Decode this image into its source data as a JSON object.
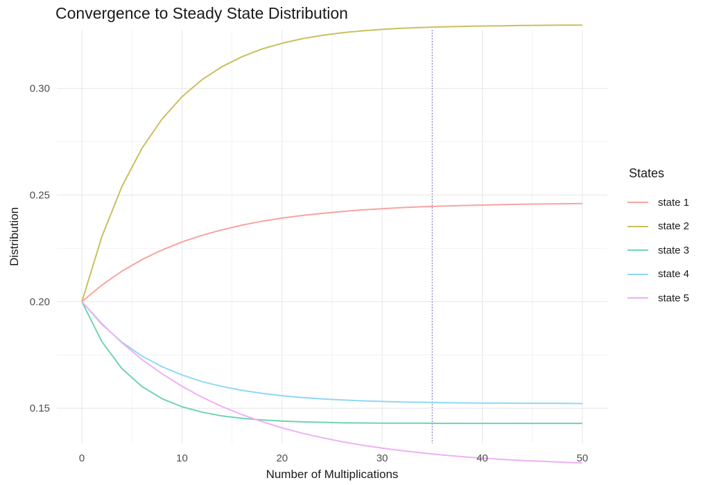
{
  "chart_data": {
    "type": "line",
    "title": "Convergence to Steady State Distribution",
    "xlabel": "Number of Multiplications",
    "ylabel": "Distribution",
    "xlim": [
      -2.5,
      52.5
    ],
    "ylim": [
      0.1335,
      0.3275
    ],
    "x_ticks": [
      0,
      10,
      20,
      30,
      40,
      50
    ],
    "x_tick_labels": [
      "0",
      "10",
      "20",
      "30",
      "40",
      "50"
    ],
    "y_ticks": [
      0.15,
      0.2,
      0.25,
      0.3
    ],
    "y_tick_labels": [
      "0.15",
      "0.20",
      "0.25",
      "0.30"
    ],
    "vline_x": 35,
    "legend_title": "States",
    "grid": true,
    "x": [
      0,
      2,
      4,
      6,
      8,
      10,
      12,
      14,
      16,
      18,
      20,
      22,
      24,
      26,
      28,
      30,
      32,
      34,
      36,
      38,
      40,
      42,
      44,
      46,
      48,
      50
    ],
    "series": [
      {
        "name": "state 1",
        "color": "#f8a39f",
        "values": [
          0.2,
          0.2078,
          0.2143,
          0.2197,
          0.2242,
          0.228,
          0.2311,
          0.2337,
          0.2359,
          0.2377,
          0.2392,
          0.2404,
          0.2414,
          0.2423,
          0.243,
          0.2436,
          0.2441,
          0.2445,
          0.2448,
          0.2451,
          0.2453,
          0.2455,
          0.2457,
          0.2458,
          0.2459,
          0.246
        ]
      },
      {
        "name": "state 2",
        "color": "#c9bf5e",
        "values": [
          0.2,
          0.2306,
          0.254,
          0.2719,
          0.2856,
          0.2961,
          0.3041,
          0.3102,
          0.3149,
          0.3185,
          0.3212,
          0.3233,
          0.3249,
          0.3261,
          0.327,
          0.3277,
          0.3282,
          0.3286,
          0.3289,
          0.3291,
          0.3293,
          0.3294,
          0.3295,
          0.3296,
          0.3297,
          0.3297
        ]
      },
      {
        "name": "state 3",
        "color": "#6fd3b0",
        "values": [
          0.2,
          0.1812,
          0.1686,
          0.1602,
          0.1545,
          0.1507,
          0.1482,
          0.1464,
          0.1453,
          0.1445,
          0.144,
          0.1436,
          0.1434,
          0.1432,
          0.1431,
          0.143,
          0.143,
          0.143,
          0.1429,
          0.1429,
          0.1429,
          0.1429,
          0.1429,
          0.1429,
          0.1429,
          0.1429
        ]
      },
      {
        "name": "state 4",
        "color": "#8ed8f5",
        "values": [
          0.2,
          0.1893,
          0.181,
          0.1745,
          0.1695,
          0.1656,
          0.1625,
          0.1602,
          0.1584,
          0.157,
          0.1559,
          0.155,
          0.1544,
          0.1539,
          0.1535,
          0.1532,
          0.1529,
          0.1528,
          0.1526,
          0.1525,
          0.1524,
          0.1524,
          0.1523,
          0.1523,
          0.1523,
          0.1522
        ]
      },
      {
        "name": "state 5",
        "color": "#eeb0f5",
        "values": [
          0.2,
          0.1897,
          0.1807,
          0.1729,
          0.1662,
          0.1603,
          0.1552,
          0.1508,
          0.147,
          0.1437,
          0.1408,
          0.1383,
          0.1362,
          0.1343,
          0.1327,
          0.1313,
          0.1301,
          0.129,
          0.1281,
          0.1273,
          0.1266,
          0.126,
          0.1255,
          0.1251,
          0.1247,
          0.1243
        ]
      }
    ]
  }
}
